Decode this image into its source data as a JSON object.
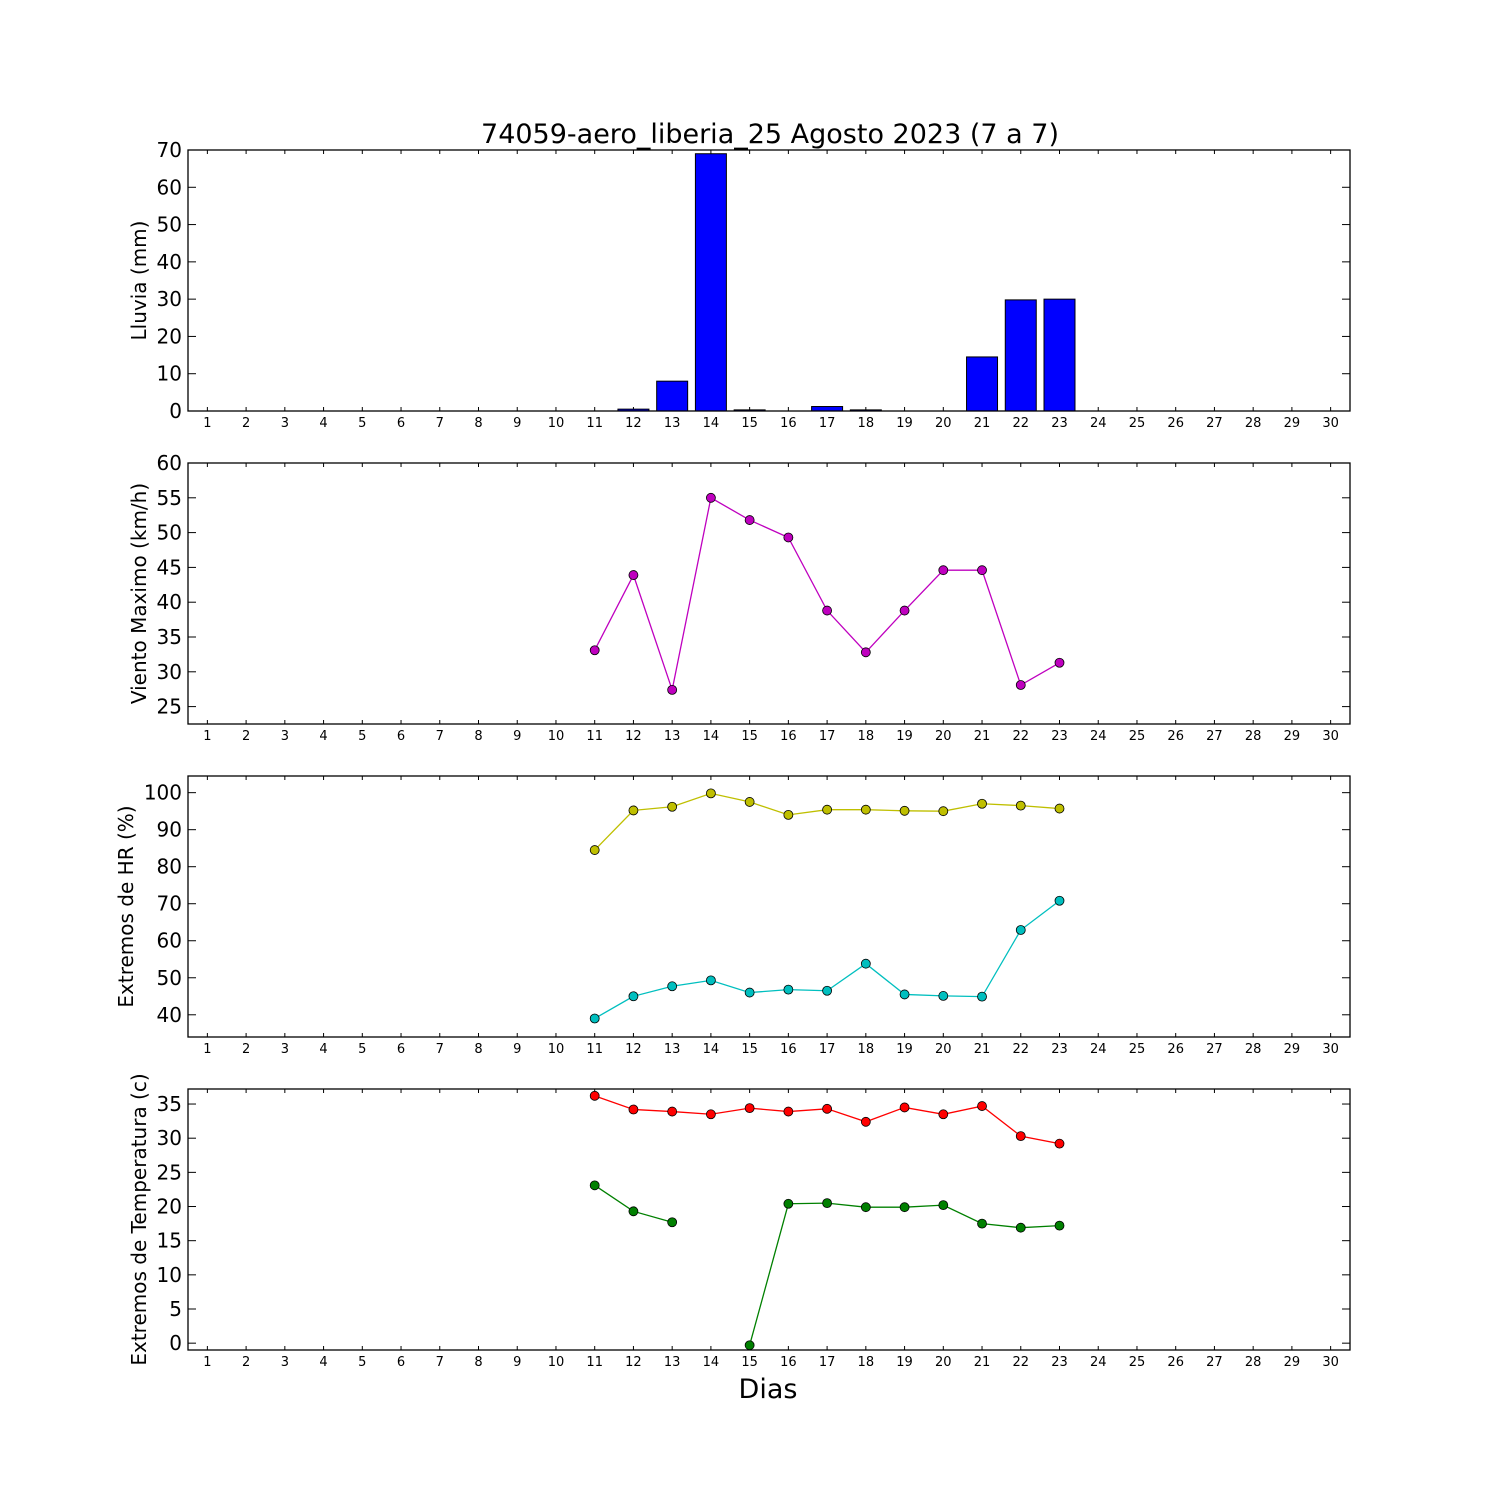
{
  "figure": {
    "title": "74059-aero_liberia_25 Agosto 2023  (7 a 7)",
    "xlabel": "Dias"
  },
  "chart_data": [
    {
      "type": "bar",
      "ylabel": "Lluvia (mm)",
      "ylim": [
        0,
        70
      ],
      "yticks": [
        0,
        10,
        20,
        30,
        40,
        50,
        60,
        70
      ],
      "x": [
        1,
        2,
        3,
        4,
        5,
        6,
        7,
        8,
        9,
        10,
        11,
        12,
        13,
        14,
        15,
        16,
        17,
        18,
        19,
        20,
        21,
        22,
        23,
        24,
        25,
        26,
        27,
        28,
        29,
        30
      ],
      "xlim": [
        0.5,
        30.5
      ],
      "series": [
        {
          "color": "#0000ff",
          "values": [
            null,
            null,
            null,
            null,
            null,
            null,
            null,
            null,
            null,
            null,
            0,
            0.5,
            8,
            69,
            0.3,
            0,
            1.2,
            0.3,
            0,
            0,
            14.5,
            29.8,
            30,
            null,
            null,
            null,
            null,
            null,
            null,
            null
          ]
        }
      ],
      "grid": false
    },
    {
      "type": "line",
      "ylabel": "Viento Maximo (km/h)",
      "ylim": [
        22.5,
        60
      ],
      "yticks": [
        25,
        30,
        35,
        40,
        45,
        50,
        55,
        60
      ],
      "x": [
        1,
        2,
        3,
        4,
        5,
        6,
        7,
        8,
        9,
        10,
        11,
        12,
        13,
        14,
        15,
        16,
        17,
        18,
        19,
        20,
        21,
        22,
        23,
        24,
        25,
        26,
        27,
        28,
        29,
        30
      ],
      "xlim": [
        0.5,
        30.5
      ],
      "series": [
        {
          "color": "#bf00bf",
          "values": [
            null,
            null,
            null,
            null,
            null,
            null,
            null,
            null,
            null,
            null,
            33.1,
            43.9,
            27.4,
            55,
            51.8,
            49.3,
            38.8,
            32.8,
            38.8,
            44.6,
            44.6,
            28.1,
            31.3,
            null,
            null,
            null,
            null,
            null,
            null,
            null
          ]
        }
      ],
      "grid": false
    },
    {
      "type": "line",
      "ylabel": "Extremos de HR (%)",
      "ylim": [
        34,
        104.5
      ],
      "yticks": [
        40,
        50,
        60,
        70,
        80,
        90,
        100
      ],
      "x": [
        1,
        2,
        3,
        4,
        5,
        6,
        7,
        8,
        9,
        10,
        11,
        12,
        13,
        14,
        15,
        16,
        17,
        18,
        19,
        20,
        21,
        22,
        23,
        24,
        25,
        26,
        27,
        28,
        29,
        30
      ],
      "xlim": [
        0.5,
        30.5
      ],
      "series": [
        {
          "color": "#bfbf00",
          "values": [
            null,
            null,
            null,
            null,
            null,
            null,
            null,
            null,
            null,
            null,
            84.5,
            95.2,
            96.2,
            99.8,
            97.5,
            94,
            95.4,
            95.4,
            95.1,
            95,
            97,
            96.5,
            95.7,
            null,
            null,
            null,
            null,
            null,
            null,
            null
          ]
        },
        {
          "color": "#00bfbf",
          "values": [
            null,
            null,
            null,
            null,
            null,
            null,
            null,
            null,
            null,
            null,
            39,
            45,
            47.7,
            49.3,
            46,
            46.8,
            46.5,
            53.8,
            45.5,
            45.1,
            44.9,
            62.9,
            70.8,
            null,
            null,
            null,
            null,
            null,
            null,
            null
          ]
        }
      ],
      "grid": false
    },
    {
      "type": "line",
      "ylabel": "Extremos de Temperatura (c)",
      "ylim": [
        -1,
        37.2
      ],
      "yticks": [
        0,
        5,
        10,
        15,
        20,
        25,
        30,
        35
      ],
      "x": [
        1,
        2,
        3,
        4,
        5,
        6,
        7,
        8,
        9,
        10,
        11,
        12,
        13,
        14,
        15,
        16,
        17,
        18,
        19,
        20,
        21,
        22,
        23,
        24,
        25,
        26,
        27,
        28,
        29,
        30
      ],
      "xlim": [
        0.5,
        30.5
      ],
      "series": [
        {
          "color": "#ff0000",
          "values": [
            null,
            null,
            null,
            null,
            null,
            null,
            null,
            null,
            null,
            null,
            36.2,
            34.2,
            33.9,
            33.5,
            34.4,
            33.9,
            34.3,
            32.4,
            34.5,
            33.5,
            34.7,
            30.3,
            29.2,
            null,
            null,
            null,
            null,
            null,
            null,
            null
          ]
        },
        {
          "color": "#008000",
          "values": [
            null,
            null,
            null,
            null,
            null,
            null,
            null,
            null,
            null,
            null,
            23.1,
            19.3,
            17.7,
            null,
            -0.3,
            20.4,
            20.5,
            19.9,
            19.9,
            20.2,
            17.5,
            16.9,
            17.2,
            null,
            null,
            null,
            null,
            null,
            null,
            null
          ]
        }
      ],
      "grid": false
    }
  ]
}
